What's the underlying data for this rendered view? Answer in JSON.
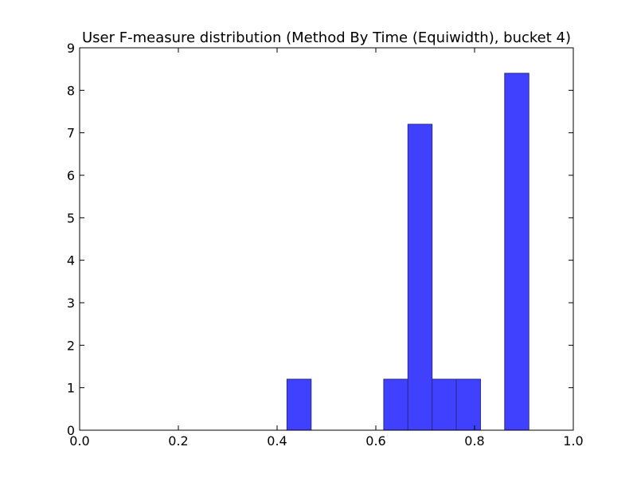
{
  "chart_data": {
    "type": "bar",
    "title": "User F-measure distribution (Method By Time (Equiwidth), bucket 4)",
    "xlabel": "",
    "ylabel": "",
    "xlim": [
      0.0,
      1.0
    ],
    "ylim": [
      0,
      9
    ],
    "x_ticks": [
      "0.0",
      "0.2",
      "0.4",
      "0.6",
      "0.8",
      "1.0"
    ],
    "y_ticks": [
      "0",
      "1",
      "2",
      "3",
      "4",
      "5",
      "6",
      "7",
      "8",
      "9"
    ],
    "grid": false,
    "bins": [
      {
        "x0": 0.42,
        "x1": 0.469,
        "value": 1.2
      },
      {
        "x0": 0.616,
        "x1": 0.665,
        "value": 1.2
      },
      {
        "x0": 0.665,
        "x1": 0.714,
        "value": 7.2
      },
      {
        "x0": 0.714,
        "x1": 0.763,
        "value": 1.2
      },
      {
        "x0": 0.763,
        "x1": 0.812,
        "value": 1.2
      },
      {
        "x0": 0.861,
        "x1": 0.91,
        "value": 8.4
      }
    ],
    "colors": {
      "bar_fill": "#4040ff",
      "bar_edge": "#2a2a8a"
    }
  }
}
